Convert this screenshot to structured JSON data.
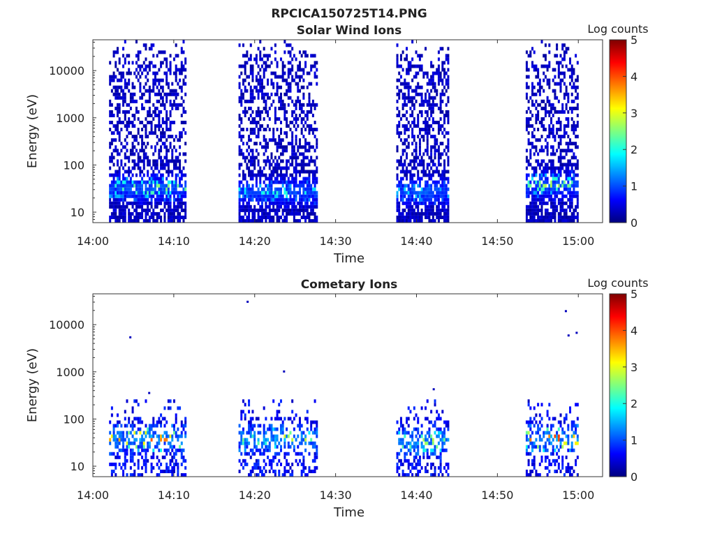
{
  "figure": {
    "title": "RPCICA150725T14.PNG"
  },
  "colormap": {
    "name": "jet",
    "stops": [
      "#00007f",
      "#0000ff",
      "#007fff",
      "#00ffff",
      "#7fff7f",
      "#ffff00",
      "#ff7f00",
      "#ff0000",
      "#7f0000"
    ]
  },
  "chart_data": [
    {
      "type": "heatmap",
      "title": "Solar Wind Ions",
      "xlabel": "Time",
      "ylabel": "Energy (eV)",
      "x_ticks": [
        "14:00",
        "14:10",
        "14:20",
        "14:30",
        "14:40",
        "14:50",
        "15:00"
      ],
      "y_ticks": [
        "10",
        "100",
        "1000",
        "10000"
      ],
      "y_scale": "log",
      "xlim": [
        "14:00",
        "15:03"
      ],
      "ylim": [
        6,
        45000
      ],
      "colorbar": {
        "label": "Log counts",
        "ticks": [
          "0",
          "1",
          "2",
          "3",
          "4",
          "5"
        ],
        "range": [
          0,
          5
        ]
      },
      "scans": [
        {
          "start": "14:02",
          "end": "14:11:30",
          "peak_energy_eV": 30,
          "peak_log_counts": 2.6
        },
        {
          "start": "14:18",
          "end": "14:27:40",
          "peak_energy_eV": 25,
          "peak_log_counts": 1.9
        },
        {
          "start": "14:37:30",
          "end": "14:44",
          "peak_energy_eV": 25,
          "peak_log_counts": 1.7
        },
        {
          "start": "14:53:30",
          "end": "14:59:50",
          "peak_energy_eV": 35,
          "peak_log_counts": 2.6
        }
      ]
    },
    {
      "type": "heatmap",
      "title": "Cometary Ions",
      "xlabel": "Time",
      "ylabel": "Energy (eV)",
      "x_ticks": [
        "14:00",
        "14:10",
        "14:20",
        "14:30",
        "14:40",
        "14:50",
        "15:00"
      ],
      "y_ticks": [
        "10",
        "100",
        "1000",
        "10000"
      ],
      "y_scale": "log",
      "xlim": [
        "14:00",
        "15:03"
      ],
      "ylim": [
        6,
        45000
      ],
      "colorbar": {
        "label": "Log counts",
        "ticks": [
          "0",
          "1",
          "2",
          "3",
          "4",
          "5"
        ],
        "range": [
          0,
          5
        ]
      },
      "scans": [
        {
          "start": "14:02",
          "end": "14:11:30",
          "peak_energy_eV": 35,
          "peak_log_counts": 3.7
        },
        {
          "start": "14:18",
          "end": "14:27:40",
          "peak_energy_eV": 35,
          "peak_log_counts": 2.5
        },
        {
          "start": "14:37:30",
          "end": "14:44",
          "peak_energy_eV": 30,
          "peak_log_counts": 2.5
        },
        {
          "start": "14:53:30",
          "end": "14:59:50",
          "peak_energy_eV": 35,
          "peak_log_counts": 4.0
        }
      ],
      "isolated_points": [
        {
          "time": "14:04:30",
          "energy_eV": 5300
        },
        {
          "time": "14:06:50",
          "energy_eV": 350
        },
        {
          "time": "14:19",
          "energy_eV": 30000
        },
        {
          "time": "14:23:30",
          "energy_eV": 1000
        },
        {
          "time": "14:42",
          "energy_eV": 420
        },
        {
          "time": "14:58:20",
          "energy_eV": 19000
        },
        {
          "time": "14:58:40",
          "energy_eV": 5800
        },
        {
          "time": "14:59:40",
          "energy_eV": 6600
        }
      ]
    }
  ]
}
